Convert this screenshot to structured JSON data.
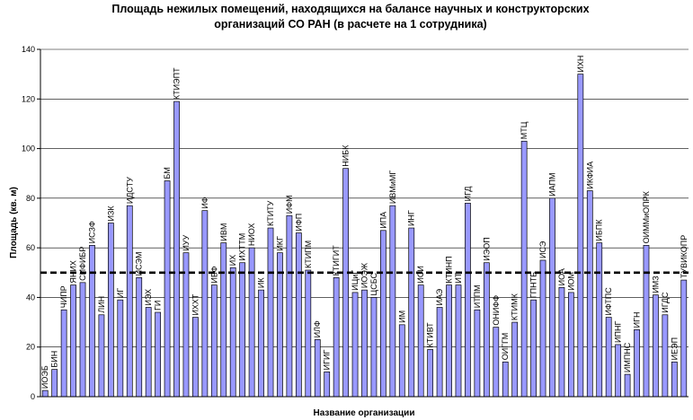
{
  "chart_data": {
    "type": "bar",
    "title_line1": "Площадь нежилых помещений, находящихся на балансе научных и конструкторских",
    "title_line2": "организаций СО РАН (в расчете на 1 сотрудника)",
    "xlabel": "Название организации",
    "ylabel": "Площадь (кв. м)",
    "ylim": [
      0,
      140
    ],
    "yticks": [
      0,
      20,
      40,
      60,
      80,
      100,
      120,
      140
    ],
    "grid": true,
    "reference_line": 50,
    "color": "#9999ff",
    "categories": [
      "ИОЭБ",
      "БИН",
      "ЧИПР",
      "ЯНИХ",
      "СИФИБР",
      "ИСЗФ",
      "ЛИН",
      "ИЗК",
      "ИГ",
      "ИДСТУ",
      "ИСЭМ",
      "ИЭХ",
      "ГИ",
      "БМ",
      "КТИЭПТ",
      "ИУУ",
      "ИХХТ",
      "ИФ",
      "ИБФ",
      "ИВМ",
      "ИХ",
      "ИХТТМ",
      "НИОХ",
      "ИК",
      "КТИТУ",
      "ИКГ",
      "ИФМ",
      "ИФП",
      "КТИПМ",
      "ИЛФ",
      "ИГИГ",
      "КТИГИТ",
      "НИБК",
      "ИЦиГ",
      "ИОЭЖ",
      "ЦСБС",
      "ИПА",
      "ИВМиМГ",
      "ИМ",
      "ИНГ",
      "ИСИ",
      "КТИВТ",
      "ИАЭ",
      "КТИНП",
      "ИТ",
      "ИГД",
      "ИТПМ",
      "ИЭОП",
      "ОНИФФ",
      "ОИГГМ",
      "КТИМК",
      "МТЦ",
      "ГПНТБ",
      "ИСЭ",
      "ИАПМ",
      "ИОА",
      "ИОМ",
      "ИХН",
      "ИКФИА",
      "ИБПК",
      "ИФТПС",
      "ИПНГ",
      "ИМПНС",
      "ИГН",
      "ОИММиОПРК",
      "ИМЗ",
      "ИГДС",
      "ИЕЭП",
      "ТУВИКОПР"
    ],
    "values": [
      2.5,
      11,
      35,
      45,
      46,
      61,
      33,
      70,
      39,
      77,
      48,
      36,
      34,
      87,
      119,
      58,
      32,
      75,
      45,
      62,
      52,
      54,
      60,
      43,
      68,
      58,
      73,
      66,
      51,
      23,
      10,
      48,
      92,
      42,
      43,
      40,
      67,
      77,
      29,
      68,
      45,
      19,
      36,
      45,
      45,
      78,
      35,
      54,
      28,
      14,
      30,
      103,
      39,
      55,
      80,
      44,
      42,
      130,
      83,
      62,
      32,
      21,
      9,
      27,
      61,
      41,
      33,
      14,
      47
    ]
  }
}
